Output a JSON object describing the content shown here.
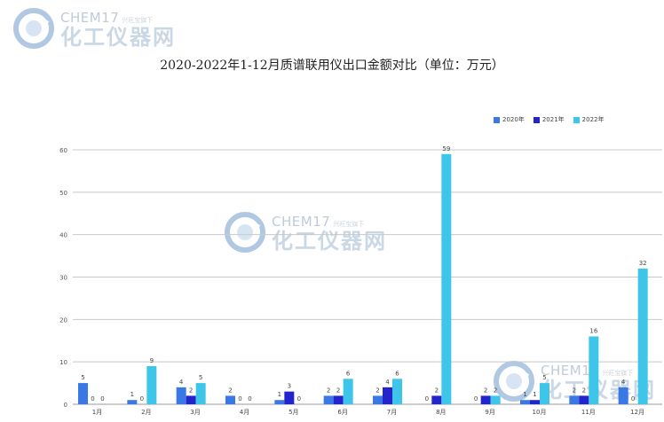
{
  "watermark": {
    "brand": "CHEM",
    "brand_num": "17",
    "tag": "兴旺宝旗下",
    "cn_name": "化工仪器网"
  },
  "chart_data": {
    "type": "bar",
    "title": "2020-2022年1-12月质谱联用仪出口金额对比（单位：万元）",
    "categories": [
      "1月",
      "2月",
      "3月",
      "4月",
      "5月",
      "6月",
      "7月",
      "8月",
      "9月",
      "10月",
      "11月",
      "12月"
    ],
    "series": [
      {
        "name": "2020年",
        "color": "#3a78e6",
        "values": [
          5,
          1,
          4,
          2,
          1,
          2,
          2,
          0,
          0,
          1,
          2,
          4
        ]
      },
      {
        "name": "2021年",
        "color": "#2424cc",
        "values": [
          0,
          0,
          2,
          0,
          3,
          2,
          4,
          2,
          2,
          1,
          2,
          0
        ]
      },
      {
        "name": "2022年",
        "color": "#3ec6ea",
        "values": [
          0,
          9,
          5,
          0,
          0,
          6,
          6,
          59,
          2,
          5,
          16,
          32
        ]
      }
    ],
    "y_ticks": [
      0,
      10,
      20,
      30,
      40,
      50,
      60
    ],
    "ylim": [
      0,
      60
    ],
    "grid": true,
    "legend": "top-right"
  }
}
